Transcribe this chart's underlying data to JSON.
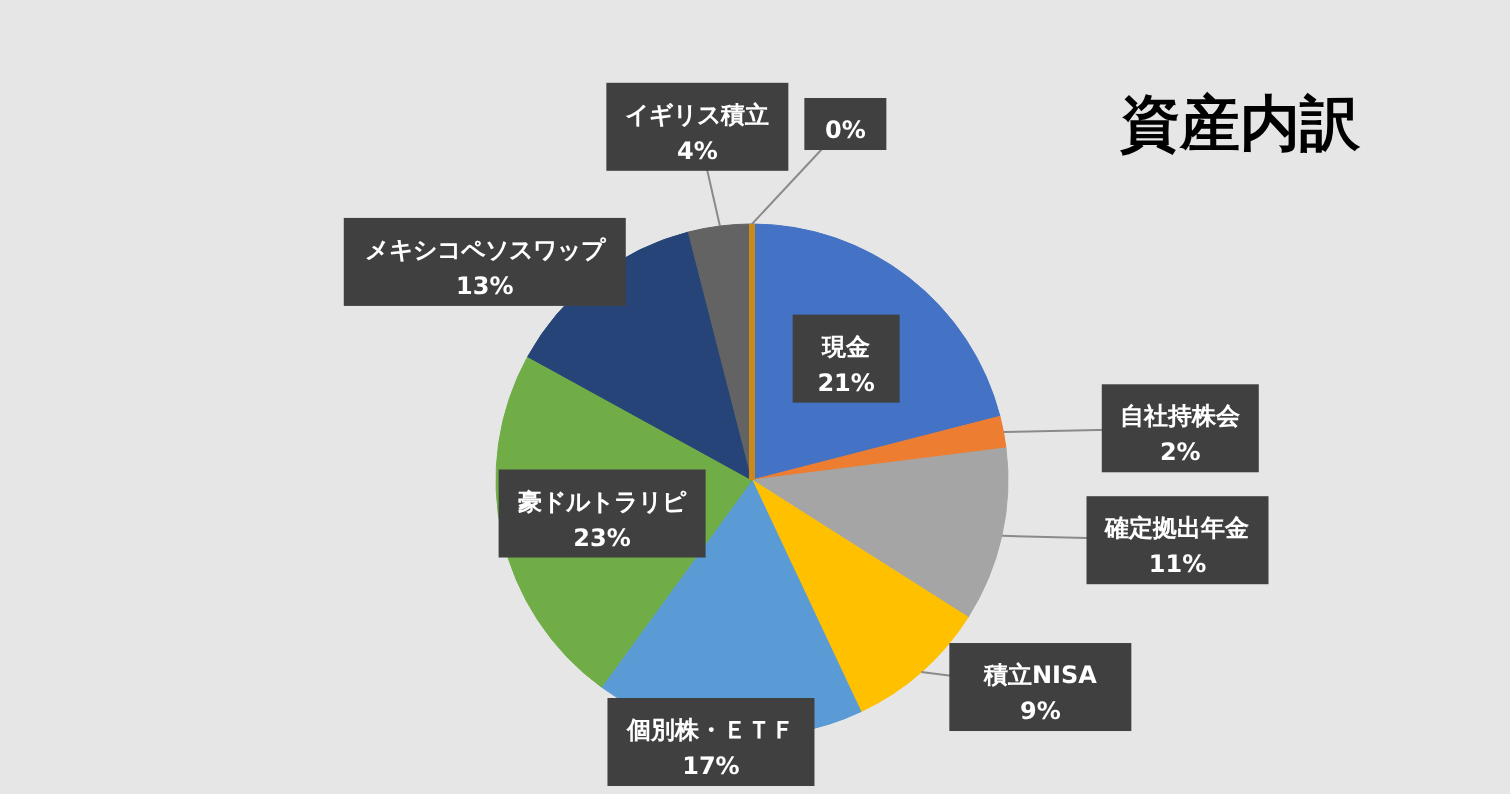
{
  "chart_data": {
    "type": "pie",
    "title": "資産内訳",
    "categories": [
      "現金",
      "自社持株会",
      "確定拠出年金",
      "積立NISA",
      "個別株・ＥＴＦ",
      "豪ドルトラリピ",
      "メキシコペソスワップ",
      "イギリス積立",
      null
    ],
    "values": [
      21,
      2,
      11,
      9,
      17,
      23,
      13,
      4,
      0
    ],
    "colors": [
      "#4472c4",
      "#ed7d31",
      "#a5a5a5",
      "#ffc000",
      "#5b9bd5",
      "#70ad47",
      "#264478",
      "#636363",
      "#c98a1a"
    ],
    "value_labels": [
      "21%",
      "2%",
      "11%",
      "9%",
      "17%",
      "23%",
      "13%",
      "4%",
      "0%"
    ]
  }
}
